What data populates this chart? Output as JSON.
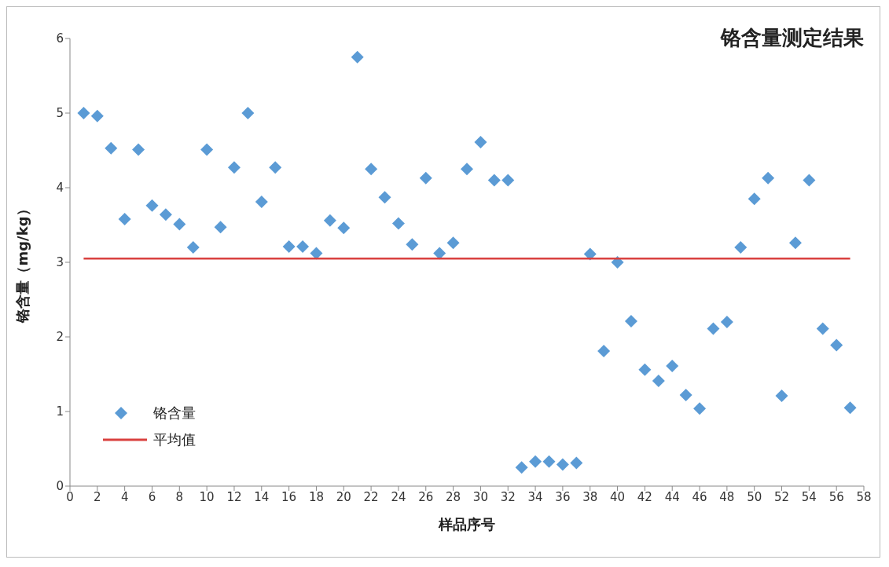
{
  "chart_data": {
    "type": "scatter",
    "title": "铬含量测定结果",
    "xlabel": "样品序号",
    "ylabel": "铬含量（mg/kg）",
    "xlim": [
      0,
      58
    ],
    "xticks": [
      0,
      2,
      4,
      6,
      8,
      10,
      12,
      14,
      16,
      18,
      20,
      22,
      24,
      26,
      28,
      30,
      32,
      34,
      36,
      38,
      40,
      42,
      44,
      46,
      48,
      50,
      52,
      54,
      56,
      58
    ],
    "ylim": [
      0,
      6
    ],
    "yticks": [
      0,
      1,
      2,
      3,
      4,
      5,
      6
    ],
    "grid": false,
    "legend": "bottom left",
    "marker": "diamond",
    "series": [
      {
        "name": "铬含量",
        "color": "#5b9bd5",
        "x": [
          1,
          2,
          3,
          4,
          5,
          6,
          7,
          8,
          9,
          10,
          11,
          12,
          13,
          14,
          15,
          16,
          17,
          18,
          19,
          20,
          21,
          22,
          23,
          24,
          25,
          26,
          27,
          28,
          29,
          30,
          31,
          32,
          33,
          34,
          35,
          36,
          37,
          38,
          39,
          40,
          41,
          42,
          43,
          44,
          45,
          46,
          47,
          48,
          49,
          50,
          51,
          52,
          53,
          54,
          55,
          56,
          57
        ],
        "values": [
          5.0,
          4.96,
          4.53,
          3.58,
          4.51,
          3.76,
          3.64,
          3.51,
          3.2,
          4.51,
          3.47,
          4.27,
          5.0,
          3.81,
          4.27,
          3.21,
          3.21,
          3.12,
          3.56,
          3.46,
          5.75,
          4.25,
          3.87,
          3.52,
          3.24,
          4.13,
          3.12,
          3.26,
          4.25,
          4.61,
          4.1,
          4.1,
          0.25,
          0.33,
          0.33,
          0.29,
          0.31,
          3.11,
          1.81,
          3.0,
          2.21,
          1.56,
          1.41,
          1.61,
          1.22,
          1.04,
          2.11,
          2.2,
          3.2,
          3.85,
          4.13,
          1.21,
          3.26,
          4.1,
          2.11,
          1.89,
          1.05
        ]
      },
      {
        "name": "平均值",
        "type": "line",
        "color": "#d9413f",
        "marker": "none",
        "line_style": "solid",
        "x": [
          1,
          57
        ],
        "values": [
          3.05,
          3.05
        ]
      }
    ]
  }
}
